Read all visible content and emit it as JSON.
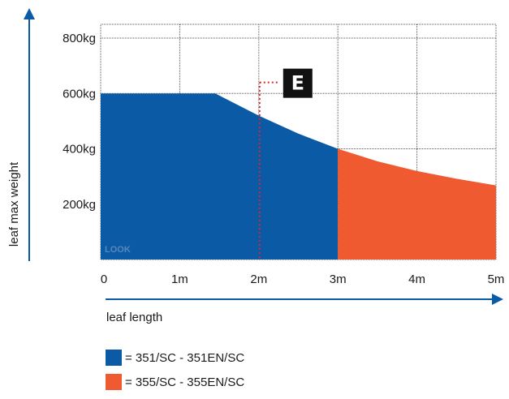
{
  "chart_data": {
    "type": "area",
    "xlabel": "leaf length",
    "ylabel": "leaf max weight",
    "x_ticks": [
      {
        "value": 0,
        "label": "0"
      },
      {
        "value": 1,
        "label": "1m"
      },
      {
        "value": 2,
        "label": "2m"
      },
      {
        "value": 3,
        "label": "3m"
      },
      {
        "value": 4,
        "label": "4m"
      },
      {
        "value": 5,
        "label": "5m"
      }
    ],
    "y_ticks": [
      {
        "value": 200,
        "label": "200kg"
      },
      {
        "value": 400,
        "label": "400kg"
      },
      {
        "value": 600,
        "label": "600kg"
      },
      {
        "value": 800,
        "label": "800kg"
      }
    ],
    "xlim": [
      0,
      5
    ],
    "ylim": [
      0,
      850
    ],
    "grid": true,
    "series": [
      {
        "name": "351/SC - 351EN/SC",
        "color": "#0a5aa6",
        "x": [
          0,
          1.45,
          2,
          2.5,
          3
        ],
        "y": [
          600,
          600,
          520,
          455,
          400
        ]
      },
      {
        "name": "355/SC - 355EN/SC",
        "color": "#f05a30",
        "x": [
          3,
          3.5,
          4,
          4.5,
          5
        ],
        "y": [
          400,
          355,
          320,
          292,
          268
        ]
      }
    ],
    "annotation": {
      "label": "E",
      "x": 2,
      "y": 640,
      "line_color": "#e0242e"
    },
    "watermark": "LOOK"
  },
  "legend": [
    {
      "text": "= 351/SC - 351EN/SC",
      "color": "#0a5aa6"
    },
    {
      "text": "= 355/SC - 355EN/SC",
      "color": "#f05a30"
    }
  ]
}
